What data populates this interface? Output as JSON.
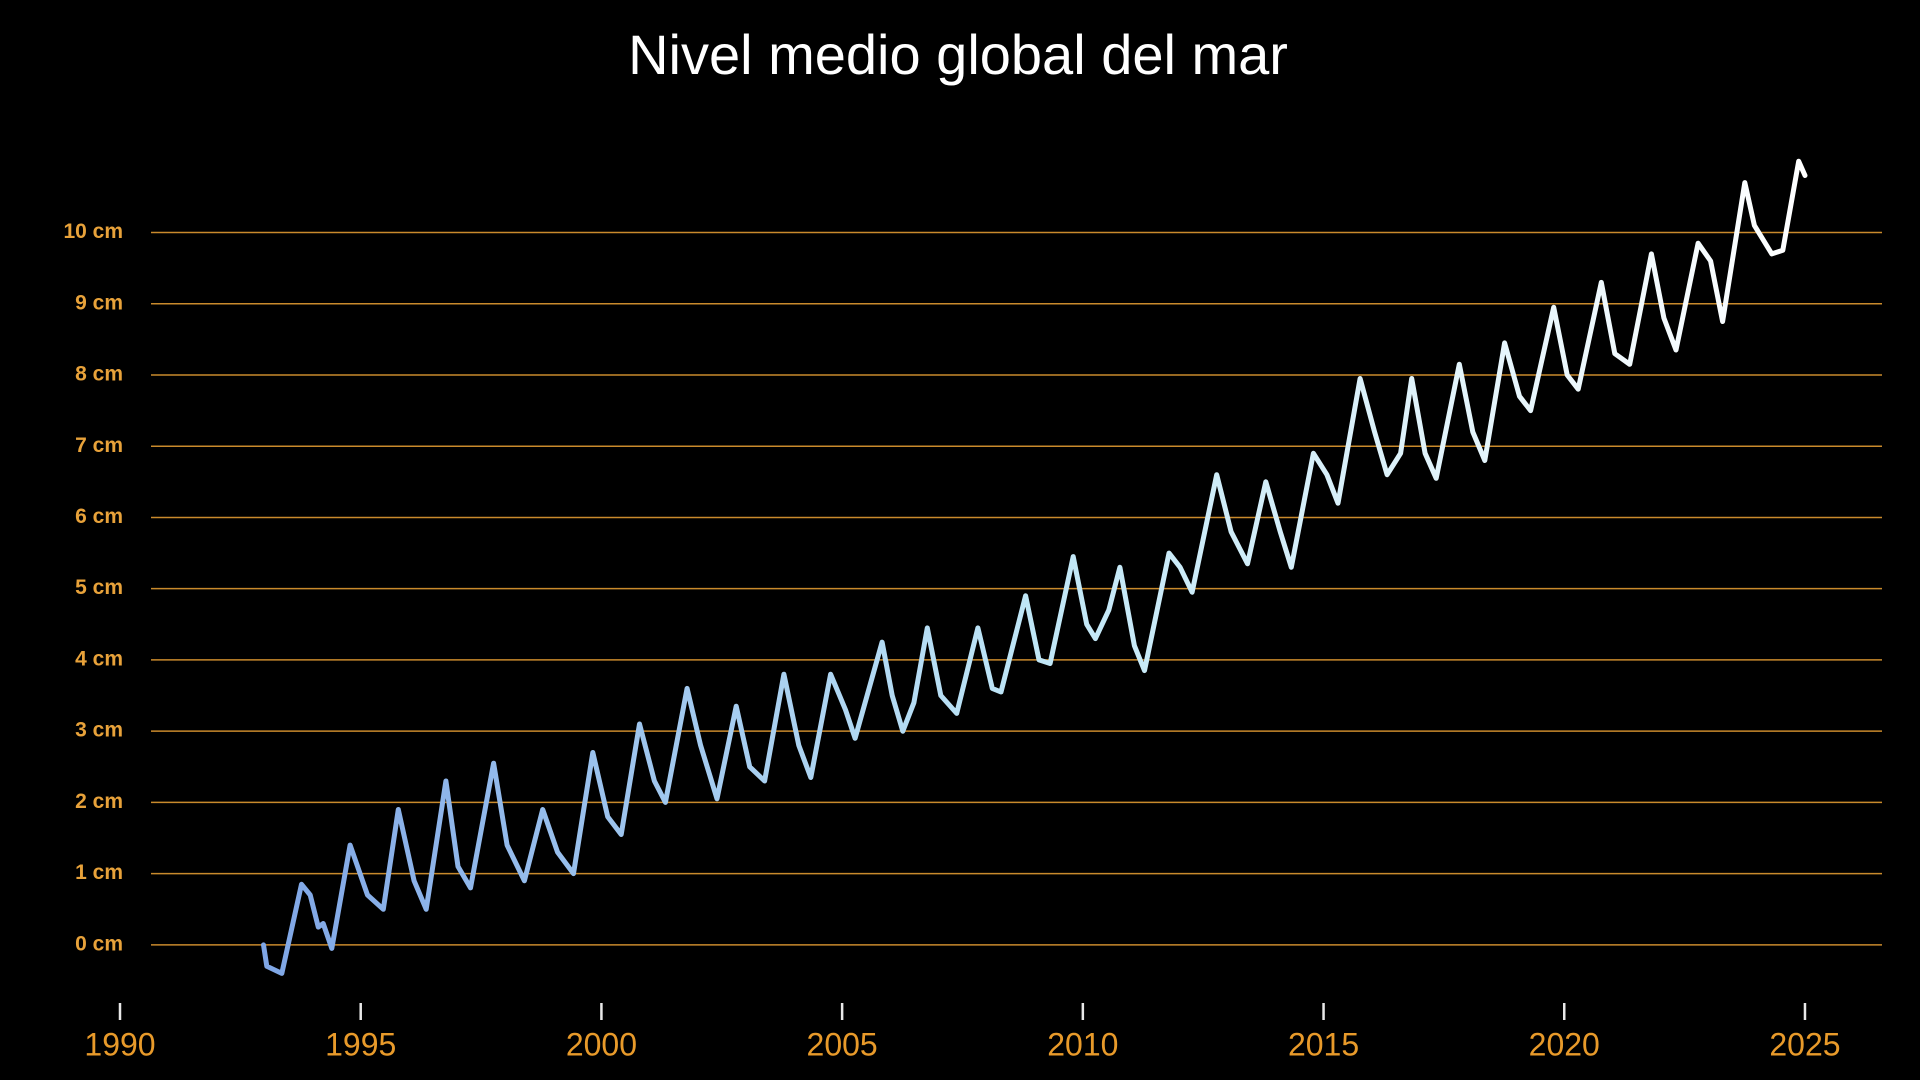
{
  "chart_data": {
    "type": "line",
    "title": "Nivel medio global del mar",
    "x": [
      1992.98,
      1993.05,
      1993.36,
      1993.77,
      1993.95,
      1994.12,
      1994.22,
      1994.4,
      1994.78,
      1995.14,
      1995.47,
      1995.78,
      1996.11,
      1996.36,
      1996.77,
      1997.02,
      1997.28,
      1997.76,
      1998.04,
      1998.4,
      1998.78,
      1999.09,
      1999.42,
      1999.82,
      2000.13,
      2000.41,
      2000.79,
      2001.1,
      2001.33,
      2001.78,
      2002.06,
      2002.4,
      2002.8,
      2003.08,
      2003.39,
      2003.79,
      2004.1,
      2004.35,
      2004.76,
      2005.07,
      2005.27,
      2005.83,
      2006.04,
      2006.26,
      2006.49,
      2006.77,
      2007.05,
      2007.38,
      2007.82,
      2008.12,
      2008.3,
      2008.81,
      2009.09,
      2009.32,
      2009.8,
      2010.08,
      2010.26,
      2010.54,
      2010.77,
      2011.07,
      2011.28,
      2011.79,
      2012.02,
      2012.27,
      2012.78,
      2013.08,
      2013.42,
      2013.8,
      2014.1,
      2014.33,
      2014.79,
      2015.07,
      2015.3,
      2015.76,
      2016.06,
      2016.32,
      2016.6,
      2016.83,
      2017.11,
      2017.34,
      2017.82,
      2018.1,
      2018.35,
      2018.76,
      2019.07,
      2019.3,
      2019.78,
      2020.06,
      2020.29,
      2020.77,
      2021.05,
      2021.36,
      2021.81,
      2022.07,
      2022.32,
      2022.78,
      2023.04,
      2023.29,
      2023.75,
      2023.95,
      2024.31,
      2024.54,
      2024.87,
      2025.0
    ],
    "values": [
      0,
      -0.3,
      -0.4,
      0.85,
      0.7,
      0.25,
      0.3,
      -0.05,
      1.4,
      0.7,
      0.5,
      1.9,
      0.9,
      0.5,
      2.3,
      1.1,
      0.8,
      2.55,
      1.4,
      0.9,
      1.9,
      1.3,
      1.0,
      2.7,
      1.8,
      1.55,
      3.1,
      2.3,
      2.0,
      3.6,
      2.8,
      2.05,
      3.35,
      2.5,
      2.3,
      3.8,
      2.8,
      2.35,
      3.8,
      3.3,
      2.9,
      4.25,
      3.5,
      3.0,
      3.4,
      4.45,
      3.5,
      3.25,
      4.45,
      3.6,
      3.55,
      4.9,
      4.0,
      3.95,
      5.45,
      4.5,
      4.3,
      4.7,
      5.3,
      4.2,
      3.85,
      5.5,
      5.3,
      4.95,
      6.6,
      5.8,
      5.35,
      6.5,
      5.8,
      5.3,
      6.9,
      6.6,
      6.2,
      7.95,
      7.2,
      6.6,
      6.9,
      7.95,
      6.9,
      6.55,
      8.15,
      7.2,
      6.8,
      8.45,
      7.7,
      7.5,
      8.95,
      8.0,
      7.8,
      9.3,
      8.3,
      8.15,
      9.7,
      8.8,
      8.35,
      9.85,
      9.6,
      8.75,
      10.7,
      10.1,
      9.7,
      9.75,
      11.0,
      10.8
    ],
    "colors": [
      "#7fa6e6",
      "#bfe6f6",
      "#ffffff"
    ],
    "xlim": [
      1990,
      2026.6
    ],
    "ylim": [
      -0.9,
      11.2
    ],
    "xticks": [
      1990,
      1995,
      2000,
      2005,
      2010,
      2015,
      2020,
      2025
    ],
    "yticks": [
      {
        "value": 0,
        "label": "0 cm"
      },
      {
        "value": 1,
        "label": "1 cm"
      },
      {
        "value": 2,
        "label": "2 cm"
      },
      {
        "value": 3,
        "label": "3 cm"
      },
      {
        "value": 4,
        "label": "4 cm"
      },
      {
        "value": 5,
        "label": "5 cm"
      },
      {
        "value": 6,
        "label": "6 cm"
      },
      {
        "value": 7,
        "label": "7 cm"
      },
      {
        "value": 8,
        "label": "8 cm"
      },
      {
        "value": 9,
        "label": "9 cm"
      },
      {
        "value": 10,
        "label": "10 cm"
      }
    ],
    "grid": true
  }
}
